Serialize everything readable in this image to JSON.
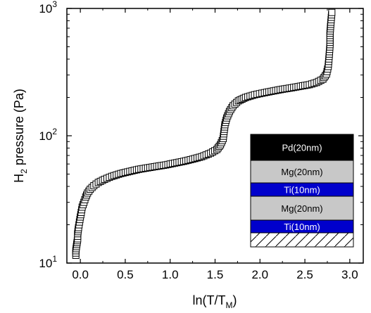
{
  "chart_data": {
    "type": "scatter",
    "title": "",
    "xlabel": {
      "base": "ln(T/T",
      "sub": "M",
      "end": ")"
    },
    "ylabel": {
      "base": "H",
      "sub": "2",
      "end": " pressure (Pa)"
    },
    "xlim": [
      -0.15,
      3.15
    ],
    "ylim": [
      10,
      1000
    ],
    "y_scale": "log",
    "grid": false,
    "x_ticks": [
      0.0,
      0.5,
      1.0,
      1.5,
      2.0,
      2.5,
      3.0
    ],
    "x_tick_labels": [
      "0.0",
      "0.5",
      "1.0",
      "1.5",
      "2.0",
      "2.5",
      "3.0"
    ],
    "y_ticks": [
      10,
      100,
      1000
    ],
    "y_tick_labels": [
      {
        "base": "10",
        "exp": "1"
      },
      {
        "base": "10",
        "exp": "2"
      },
      {
        "base": "10",
        "exp": "3"
      }
    ],
    "marker": "open-square",
    "series": [
      {
        "points": [
          [
            -0.05,
            11.5
          ],
          [
            -0.05,
            12.5
          ],
          [
            -0.04,
            14
          ],
          [
            -0.03,
            15.5
          ],
          [
            -0.03,
            17
          ],
          [
            -0.02,
            19
          ],
          [
            -0.01,
            21
          ],
          [
            0.0,
            23
          ],
          [
            0.01,
            25
          ],
          [
            0.02,
            27.5
          ],
          [
            0.04,
            30
          ],
          [
            0.06,
            33
          ],
          [
            0.08,
            35.5
          ],
          [
            0.11,
            38
          ],
          [
            0.15,
            40.5
          ],
          [
            0.2,
            43
          ],
          [
            0.27,
            45.5
          ],
          [
            0.35,
            48
          ],
          [
            0.45,
            50.5
          ],
          [
            0.55,
            52.5
          ],
          [
            0.65,
            54.5
          ],
          [
            0.75,
            56
          ],
          [
            0.85,
            57.5
          ],
          [
            0.95,
            59
          ],
          [
            1.05,
            61
          ],
          [
            1.15,
            63
          ],
          [
            1.25,
            65.5
          ],
          [
            1.35,
            68.5
          ],
          [
            1.45,
            73
          ],
          [
            1.52,
            78
          ],
          [
            1.56,
            85
          ],
          [
            1.59,
            95
          ],
          [
            1.6,
            108
          ],
          [
            1.61,
            122
          ],
          [
            1.63,
            138
          ],
          [
            1.66,
            155
          ],
          [
            1.7,
            172
          ],
          [
            1.76,
            188
          ],
          [
            1.84,
            200
          ],
          [
            1.94,
            210
          ],
          [
            2.05,
            218
          ],
          [
            2.15,
            225
          ],
          [
            2.25,
            232
          ],
          [
            2.35,
            238
          ],
          [
            2.45,
            245
          ],
          [
            2.55,
            252
          ],
          [
            2.63,
            262
          ],
          [
            2.7,
            278
          ],
          [
            2.74,
            305
          ],
          [
            2.76,
            350
          ],
          [
            2.77,
            420
          ],
          [
            2.78,
            520
          ],
          [
            2.78,
            640
          ],
          [
            2.79,
            780
          ],
          [
            2.8,
            930
          ]
        ]
      }
    ]
  },
  "inset": {
    "layers": [
      {
        "label": "Pd(20nm)",
        "fill": "#000000",
        "text_color": "#ffffff"
      },
      {
        "label": "Mg(20nm)",
        "fill": "#c8c8c8",
        "text_color": "#000000"
      },
      {
        "label": "Ti(10nm)",
        "fill": "#0000cc",
        "text_color": "#ffffff"
      },
      {
        "label": "Mg(20nm)",
        "fill": "#c8c8c8",
        "text_color": "#000000"
      },
      {
        "label": "Ti(10nm)",
        "fill": "#0000cc",
        "text_color": "#ffffff"
      }
    ],
    "substrate_pattern": "diagonal-hatch"
  }
}
